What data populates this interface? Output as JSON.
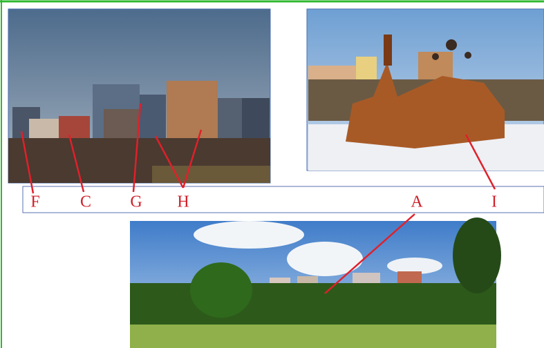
{
  "labels": [
    "F",
    "C",
    "G",
    "H",
    "A",
    "I"
  ]
}
